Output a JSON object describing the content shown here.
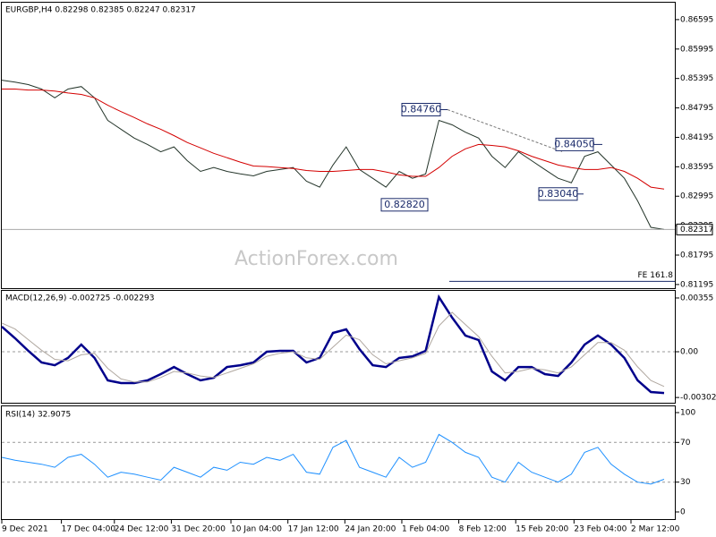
{
  "chart_data": [
    {
      "type": "line",
      "title": "EURGBP,H4  0.82298 0.82385 0.82247 0.82317",
      "watermark": "ActionForex.com",
      "series": [
        {
          "color": "#24352a",
          "values": [
            0.8536,
            0.8532,
            0.8527,
            0.8518,
            0.85,
            0.8518,
            0.8523,
            0.85,
            0.8454,
            0.8436,
            0.8418,
            0.8405,
            0.839,
            0.84,
            0.8372,
            0.835,
            0.8358,
            0.835,
            0.8345,
            0.8341,
            0.835,
            0.8354,
            0.8358,
            0.833,
            0.8318,
            0.8363,
            0.84,
            0.8354,
            0.8336,
            0.8318,
            0.835,
            0.8336,
            0.8345,
            0.8454,
            0.8445,
            0.843,
            0.8418,
            0.8381,
            0.8358,
            0.839,
            0.8372,
            0.8354,
            0.8336,
            0.8327,
            0.8381,
            0.839,
            0.8363,
            0.8336,
            0.829,
            0.8236,
            0.82317
          ]
        },
        {
          "color": "#d40000",
          "values": [
            0.8518,
            0.8518,
            0.8516,
            0.8516,
            0.8514,
            0.851,
            0.8507,
            0.85,
            0.8485,
            0.8472,
            0.846,
            0.8447,
            0.8436,
            0.8423,
            0.8409,
            0.8398,
            0.8387,
            0.8378,
            0.8369,
            0.8361,
            0.836,
            0.8358,
            0.8356,
            0.8352,
            0.835,
            0.835,
            0.8352,
            0.8354,
            0.8354,
            0.8349,
            0.8343,
            0.834,
            0.834,
            0.8358,
            0.8381,
            0.8396,
            0.8405,
            0.8403,
            0.84,
            0.8392,
            0.8381,
            0.8372,
            0.8363,
            0.8358,
            0.8354,
            0.8354,
            0.8358,
            0.835,
            0.8336,
            0.8318,
            0.8314
          ]
        }
      ],
      "ylim": [
        0.8112,
        0.8694
      ],
      "yticks": [
        0.86595,
        0.85995,
        0.85395,
        0.84795,
        0.84195,
        0.83595,
        0.82995,
        0.82395,
        0.81795,
        0.81195
      ],
      "annotations": [
        {
          "value": 0.8476,
          "label": "0.84760"
        },
        {
          "value": 0.8282,
          "label": "0.82820"
        },
        {
          "value": 0.8405,
          "label": "0.84050"
        },
        {
          "value": 0.8304,
          "label": "0.83040"
        }
      ],
      "fib": {
        "value": 0.8126,
        "label": "FE 161.8"
      }
    },
    {
      "type": "line",
      "title": "MACD(12,26,9) -0.002725 -0.002293",
      "series": [
        {
          "color": "#00008b",
          "values": [
            0.00166,
            0.00089,
            6e-05,
            -0.00071,
            -0.00089,
            -0.00041,
            0.00047,
            -0.00041,
            -0.00189,
            -0.00207,
            -0.00207,
            -0.00189,
            -0.00148,
            -0.00101,
            -0.00148,
            -0.00189,
            -0.00172,
            -0.00101,
            -0.00089,
            -0.00071,
            0,
            6e-05,
            6e-05,
            -0.00071,
            -0.00041,
            0.00124,
            0.00148,
            0.00018,
            -0.00089,
            -0.00101,
            -0.00041,
            -0.0003,
            6e-05,
            0.00361,
            0.00225,
            0.00107,
            0.00077,
            -0.0013,
            -0.00189,
            -0.00101,
            -0.00101,
            -0.00148,
            -0.0016,
            -0.00071,
            0.00047,
            0.00107,
            0.00047,
            -0.00041,
            -0.00189,
            -0.00266,
            -0.002725
          ]
        },
        {
          "color": "#b0a8a0",
          "values": [
            0.0019,
            0.0015,
            0.0008,
            0.0001,
            -0.0005,
            -0.0006,
            -0.0002,
            -0.0001,
            -0.0011,
            -0.0018,
            -0.002,
            -0.002,
            -0.0017,
            -0.0013,
            -0.0014,
            -0.0016,
            -0.0017,
            -0.0014,
            -0.0011,
            -0.0008,
            -0.0003,
            -0.0001,
            0,
            -0.0004,
            -0.0005,
            0.0003,
            0.0011,
            0.0008,
            -0.0002,
            -0.0008,
            -0.0006,
            -0.0004,
            -0.0001,
            0.0017,
            0.0026,
            0.0018,
            0.001,
            -0.0003,
            -0.0014,
            -0.0013,
            -0.0011,
            -0.0012,
            -0.0014,
            -0.001,
            -0.0002,
            0.0006,
            0.0006,
            0.0001,
            -0.001,
            -0.0019,
            -0.002293
          ]
        }
      ],
      "ylim": [
        -0.00337,
        0.00402
      ],
      "yticks": [
        0.00355,
        {
          "value": 0,
          "label": "0.00"
        },
        -0.003023
      ],
      "levels": [
        0
      ]
    },
    {
      "type": "line",
      "title": "RSI(14) 32.9075",
      "series": [
        {
          "color": "#1e90ff",
          "values": [
            55,
            52,
            50,
            48,
            45,
            55,
            58,
            48,
            35,
            40,
            38,
            35,
            32,
            45,
            40,
            35,
            45,
            42,
            50,
            48,
            55,
            52,
            58,
            40,
            38,
            65,
            72,
            45,
            40,
            35,
            55,
            45,
            50,
            78,
            70,
            60,
            55,
            35,
            30,
            50,
            40,
            35,
            30,
            38,
            60,
            65,
            48,
            38,
            30,
            28,
            32.9075
          ]
        }
      ],
      "ylim": [
        -7.2,
        105.4
      ],
      "yticks": [
        100,
        70,
        30,
        0
      ],
      "levels": [
        70,
        30
      ],
      "xlim": [
        0,
        50
      ],
      "xticks": [
        {
          "value": 0,
          "label": "9 Dec 2021"
        },
        {
          "value": 4.5,
          "label": "17 Dec 04:00"
        },
        {
          "value": 8.5,
          "label": "24 Dec 12:00"
        },
        {
          "value": 12.8,
          "label": "31 Dec 20:00"
        },
        {
          "value": 17.3,
          "label": "10 Jan 04:00"
        },
        {
          "value": 21.6,
          "label": "17 Jan 12:00"
        },
        {
          "value": 25.9,
          "label": "24 Jan 20:00"
        },
        {
          "value": 30.2,
          "label": "1 Feb 04:00"
        },
        {
          "value": 34.5,
          "label": "8 Feb 12:00"
        },
        {
          "value": 38.8,
          "label": "15 Feb 20:00"
        },
        {
          "value": 43.2,
          "label": "23 Feb 04:00"
        },
        {
          "value": 47.5,
          "label": "2 Mar 12:00"
        }
      ]
    }
  ]
}
